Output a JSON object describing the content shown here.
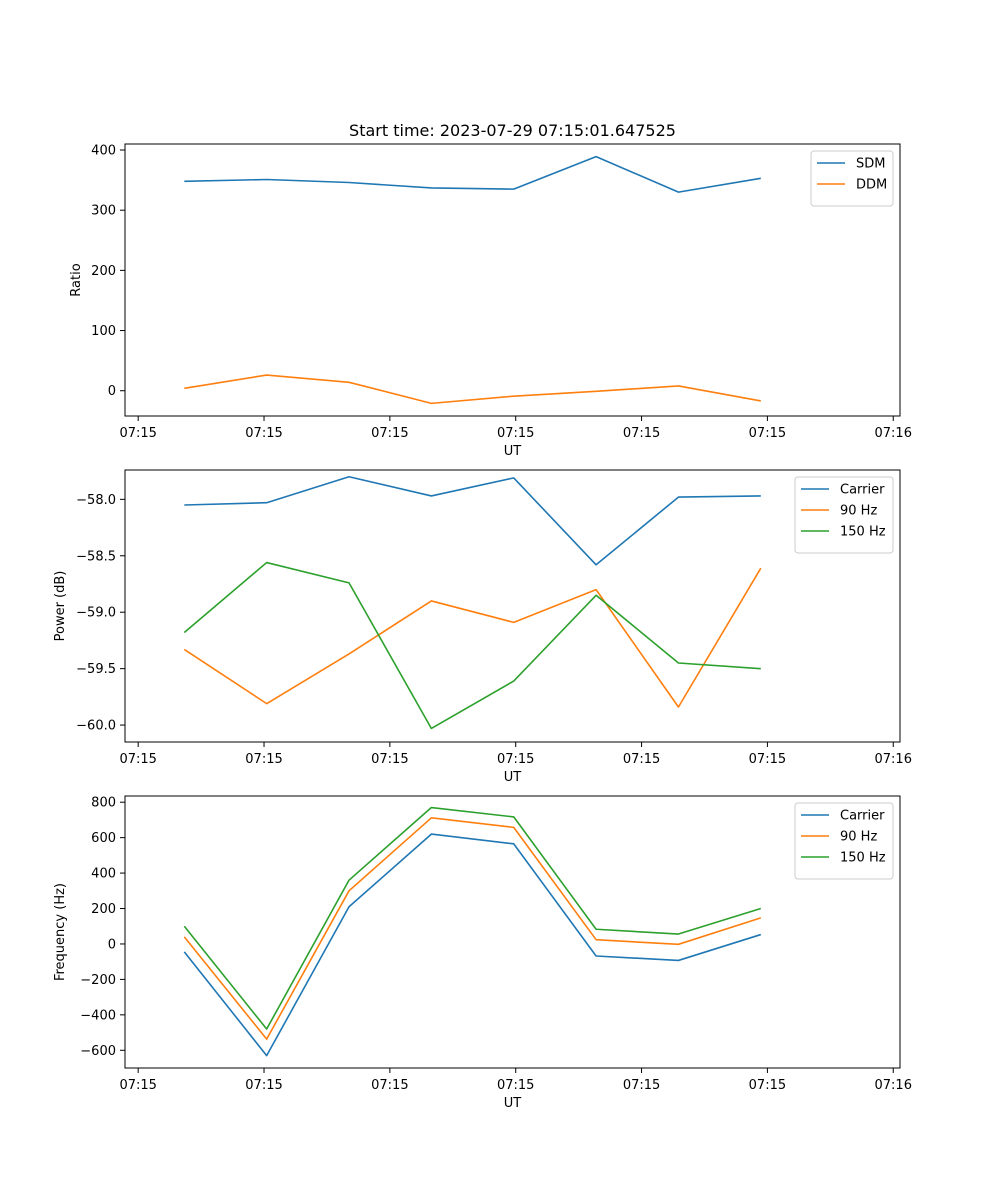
{
  "figure_title": "Start time: 2023-07-29 07:15:01.647525",
  "chart_data": [
    {
      "type": "line",
      "title": "Start time: 2023-07-29 07:15:01.647525",
      "xlabel": "UT",
      "ylabel": "Ratio",
      "x_ticks": [
        "07:15",
        "07:15",
        "07:15",
        "07:15",
        "07:15",
        "07:15",
        "07:16"
      ],
      "x": [
        1,
        2,
        3,
        4,
        5,
        6,
        7,
        8
      ],
      "xlim": [
        0.28,
        9.69
      ],
      "ylim": [
        -42,
        410
      ],
      "y_ticks": [
        0,
        100,
        200,
        300,
        400
      ],
      "legend_position": "top-right",
      "series": [
        {
          "name": "SDM",
          "color": "#1f77b4",
          "values": [
            348,
            351,
            346,
            337,
            335,
            389,
            330,
            353
          ]
        },
        {
          "name": "DDM",
          "color": "#ff7f0e",
          "values": [
            4,
            26,
            14,
            -21,
            -9,
            -1,
            8,
            -17
          ]
        }
      ]
    },
    {
      "type": "line",
      "xlabel": "UT",
      "ylabel": "Power (dB)",
      "x_ticks": [
        "07:15",
        "07:15",
        "07:15",
        "07:15",
        "07:15",
        "07:15",
        "07:16"
      ],
      "x": [
        1,
        2,
        3,
        4,
        5,
        6,
        7,
        8
      ],
      "xlim": [
        0.28,
        9.69
      ],
      "ylim": [
        -60.15,
        -57.74
      ],
      "y_ticks": [
        -60.0,
        -59.5,
        -59.0,
        -58.5,
        -58.0
      ],
      "y_tick_labels": [
        "−60.0",
        "−59.5",
        "−59.0",
        "−58.5",
        "−58.0"
      ],
      "legend_position": "top-right",
      "series": [
        {
          "name": "Carrier",
          "color": "#1f77b4",
          "values": [
            -58.05,
            -58.03,
            -57.8,
            -57.97,
            -57.81,
            -58.58,
            -57.98,
            -57.97
          ]
        },
        {
          "name": "90 Hz",
          "color": "#ff7f0e",
          "values": [
            -59.33,
            -59.81,
            -59.37,
            -58.9,
            -59.09,
            -58.8,
            -59.84,
            -58.61
          ]
        },
        {
          "name": "150 Hz",
          "color": "#2ca02c",
          "values": [
            -59.18,
            -58.56,
            -58.74,
            -60.03,
            -59.61,
            -58.85,
            -59.45,
            -59.5
          ]
        }
      ]
    },
    {
      "type": "line",
      "xlabel": "UT",
      "ylabel": "Frequency (Hz)",
      "x_ticks": [
        "07:15",
        "07:15",
        "07:15",
        "07:15",
        "07:15",
        "07:15",
        "07:16"
      ],
      "x": [
        1,
        2,
        3,
        4,
        5,
        6,
        7,
        8
      ],
      "xlim": [
        0.28,
        9.69
      ],
      "ylim": [
        -700,
        835
      ],
      "y_ticks": [
        -600,
        -400,
        -200,
        0,
        200,
        400,
        600,
        800
      ],
      "y_tick_labels": [
        "−600",
        "−400",
        "−200",
        "0",
        "200",
        "400",
        "600",
        "800"
      ],
      "legend_position": "top-right",
      "series": [
        {
          "name": "Carrier",
          "color": "#1f77b4",
          "values": [
            -45,
            -630,
            210,
            620,
            565,
            -68,
            -93,
            53
          ]
        },
        {
          "name": "90 Hz",
          "color": "#ff7f0e",
          "values": [
            40,
            -537,
            300,
            712,
            658,
            24,
            -2,
            147
          ]
        },
        {
          "name": "150 Hz",
          "color": "#2ca02c",
          "values": [
            100,
            -480,
            360,
            770,
            717,
            83,
            56,
            200
          ]
        }
      ]
    }
  ]
}
